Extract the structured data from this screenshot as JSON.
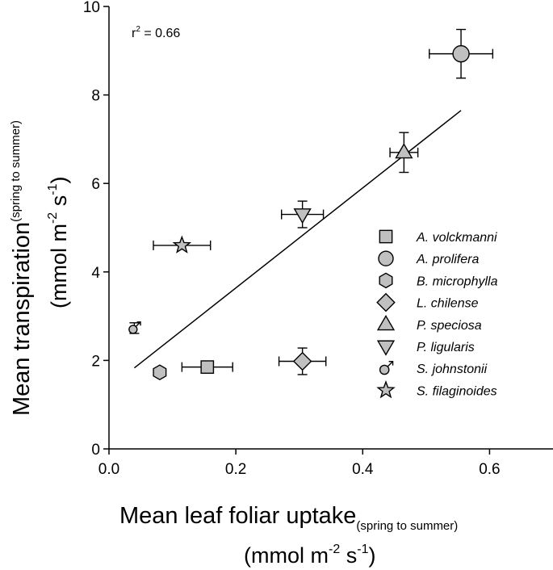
{
  "chart_data": {
    "type": "scatter",
    "title": "",
    "xlabel": {
      "main": "Mean leaf foliar uptake",
      "sub": "(spring to summer)",
      "unit": {
        "open": "(mmol m",
        "exp1": "-2",
        "mid": " s",
        "exp2": "-1",
        "close": ")"
      }
    },
    "ylabel": {
      "main": "Mean transpiration",
      "sub": "(spring to summer)",
      "unit": {
        "open": "(mmol m",
        "exp1": "-2",
        "mid": " s",
        "exp2": "-1",
        "close": ")"
      }
    },
    "xlim": [
      0,
      0.7
    ],
    "ylim": [
      0,
      10
    ],
    "xticks": [
      0.0,
      0.2,
      0.4,
      0.6
    ],
    "xtick_labels": [
      "0.0",
      "0.2",
      "0.4",
      "0.6"
    ],
    "yticks": [
      0,
      2,
      4,
      6,
      8,
      10
    ],
    "ytick_labels": [
      "0",
      "2",
      "4",
      "6",
      "8",
      "10"
    ],
    "annotation": {
      "base": "r",
      "sup": "2",
      "rest": " = 0.66"
    },
    "regression_line": {
      "x": [
        0.04,
        0.555
      ],
      "y": [
        1.83,
        7.65
      ]
    },
    "legend_position": "right",
    "series": [
      {
        "name": "A. volckmanni",
        "marker": "square",
        "x": 0.155,
        "y": 1.85,
        "xerr": 0.04,
        "yerr": 0.0
      },
      {
        "name": "A. prolifera",
        "marker": "circle",
        "x": 0.555,
        "y": 8.93,
        "xerr": 0.05,
        "yerr": 0.55
      },
      {
        "name": "B. microphylla",
        "marker": "hexagon",
        "x": 0.08,
        "y": 1.73,
        "xerr": 0.0,
        "yerr": 0.0
      },
      {
        "name": "L. chilense",
        "marker": "diamond",
        "x": 0.305,
        "y": 1.98,
        "xerr": 0.037,
        "yerr": 0.3
      },
      {
        "name": "P. speciosa",
        "marker": "triangle-up",
        "x": 0.465,
        "y": 6.7,
        "xerr": 0.022,
        "yerr": 0.45
      },
      {
        "name": "P. ligularis",
        "marker": "triangle-down",
        "x": 0.305,
        "y": 5.3,
        "xerr": 0.033,
        "yerr": 0.3
      },
      {
        "name": "S. johnstonii",
        "marker": "male-symbol",
        "x": 0.04,
        "y": 2.73,
        "xerr": 0.0,
        "yerr": 0.12
      },
      {
        "name": "S. filaginoides",
        "marker": "star",
        "x": 0.115,
        "y": 4.6,
        "xerr": 0.045,
        "yerr": 0.0
      }
    ],
    "colors": {
      "marker_fill": "#c0c0c0",
      "marker_stroke": "#000000",
      "axis": "#000000"
    }
  }
}
